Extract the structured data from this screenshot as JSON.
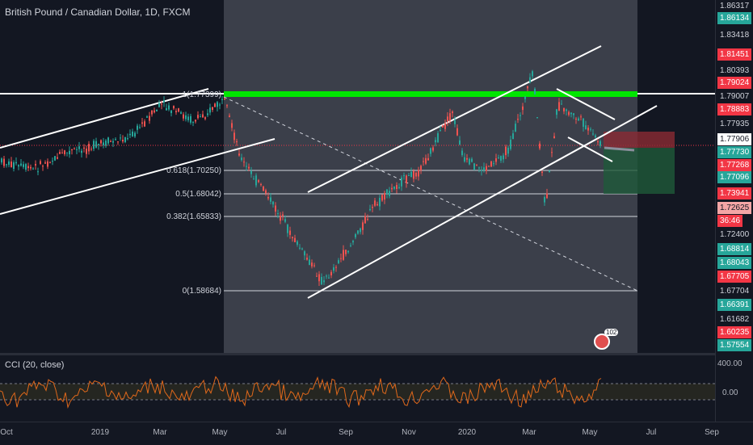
{
  "chart": {
    "title": "British Pound / Canadian Dollar, 1D, FXCM",
    "fib_levels": [
      {
        "label": "1(1.77399)",
        "y": 117
      },
      {
        "label": "0.618(1.70250)",
        "y": 211
      },
      {
        "label": "0.5(1.68042)",
        "y": 240
      },
      {
        "label": "0.382(1.65833)",
        "y": 268
      },
      {
        "label": "0(1.58684)",
        "y": 360
      }
    ]
  },
  "cci": {
    "title": "CCI (20, close)",
    "axis": [
      "400.00",
      "0.00"
    ]
  },
  "price_axis": [
    {
      "text": "1.86317",
      "bg": "#131722",
      "fg": "#d1d4dc"
    },
    {
      "text": "1.86134",
      "bg": "#26a69a",
      "fg": "#ffffff"
    },
    {
      "text": "1.83418",
      "bg": "#131722",
      "fg": "#d1d4dc"
    },
    {
      "text": "1.81451",
      "bg": "#f23645",
      "fg": "#ffffff"
    },
    {
      "text": "1.80393",
      "bg": "#131722",
      "fg": "#d1d4dc"
    },
    {
      "text": "1.79024",
      "bg": "#f23645",
      "fg": "#ffffff"
    },
    {
      "text": "1.79007",
      "bg": "#131722",
      "fg": "#d1d4dc"
    },
    {
      "text": "1.78883",
      "bg": "#f23645",
      "fg": "#ffffff"
    },
    {
      "text": "1.77935",
      "bg": "#131722",
      "fg": "#d1d4dc"
    },
    {
      "text": "1.77906",
      "bg": "#ffffff",
      "fg": "#131722"
    },
    {
      "text": "1.77730",
      "bg": "#26a69a",
      "fg": "#ffffff"
    },
    {
      "text": "1.77268",
      "bg": "#f23645",
      "fg": "#ffffff"
    },
    {
      "text": "1.77096",
      "bg": "#26a69a",
      "fg": "#ffffff"
    },
    {
      "text": "1.73941",
      "bg": "#f23645",
      "fg": "#ffffff"
    },
    {
      "text": "1.72625",
      "bg": "#f4a6a6",
      "fg": "#131722"
    },
    {
      "text": "36:46",
      "bg": "#f23645",
      "fg": "#ffffff"
    },
    {
      "text": "1.72400",
      "bg": "#131722",
      "fg": "#d1d4dc"
    },
    {
      "text": "1.68814",
      "bg": "#26a69a",
      "fg": "#ffffff"
    },
    {
      "text": "1.68043",
      "bg": "#26a69a",
      "fg": "#ffffff"
    },
    {
      "text": "1.67705",
      "bg": "#f23645",
      "fg": "#ffffff"
    },
    {
      "text": "1.67704",
      "bg": "#131722",
      "fg": "#d1d4dc"
    },
    {
      "text": "1.66391",
      "bg": "#26a69a",
      "fg": "#ffffff"
    },
    {
      "text": "1.61682",
      "bg": "#131722",
      "fg": "#d1d4dc"
    },
    {
      "text": "1.60235",
      "bg": "#f23645",
      "fg": "#ffffff"
    },
    {
      "text": "1.57554",
      "bg": "#26a69a",
      "fg": "#ffffff"
    }
  ],
  "time_axis": [
    "Oct",
    "2019",
    "Mar",
    "May",
    "Jul",
    "Sep",
    "Nov",
    "2020",
    "Mar",
    "May",
    "Jul",
    "Sep"
  ],
  "news_badge": "102"
}
